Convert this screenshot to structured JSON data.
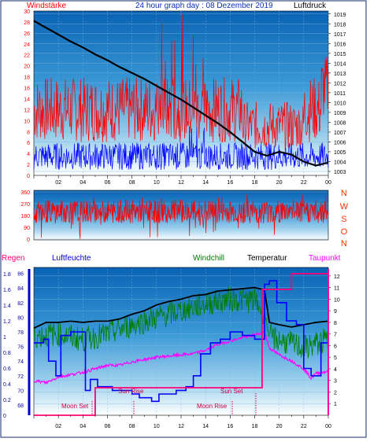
{
  "header": {
    "left_label": "Windstärke",
    "title": "24 hour graph day : 08 Dezember 2019",
    "right_label": "Luftdruck"
  },
  "chart_data": [
    {
      "type": "line",
      "panel": "wind-pressure",
      "x_label_hours": [
        "02",
        "04",
        "06",
        "08",
        "10",
        "12",
        "14",
        "16",
        "18",
        "20",
        "22",
        "00"
      ],
      "left_axis": {
        "label": "Windstärke",
        "ticks": [
          0,
          2,
          4,
          6,
          8,
          10,
          12,
          14,
          16,
          18,
          20,
          22,
          24,
          26,
          28,
          30
        ],
        "top_label": "30"
      },
      "right_axis": {
        "label": "Luftdruck",
        "ticks": [
          1003,
          1004,
          1005,
          1006,
          1007,
          1008,
          1009,
          1010,
          1011,
          1012,
          1013,
          1014,
          1015,
          1016,
          1017,
          1018,
          1019
        ]
      },
      "series": [
        {
          "name": "Luftdruck",
          "axis": "right",
          "color": "#000000",
          "x": [
            0,
            1,
            2,
            3,
            4,
            5,
            6,
            7,
            8,
            9,
            10,
            11,
            12,
            13,
            14,
            15,
            16,
            17,
            18,
            19,
            20,
            21,
            22,
            23,
            24
          ],
          "values": [
            1018.3,
            1017.6,
            1016.9,
            1016.2,
            1015.6,
            1014.9,
            1014.3,
            1013.6,
            1013.0,
            1012.4,
            1011.7,
            1011.0,
            1010.3,
            1009.5,
            1008.7,
            1007.9,
            1007.0,
            1006.0,
            1005.0,
            1004.6,
            1005.0,
            1004.7,
            1004.0,
            1003.6,
            1003.9
          ]
        },
        {
          "name": "Böen",
          "axis": "left",
          "color": "#ff0000",
          "typical_range": [
            6,
            18
          ]
        },
        {
          "name": "Wind",
          "axis": "left",
          "color": "#0000ff",
          "typical_range": [
            1,
            6
          ]
        }
      ]
    },
    {
      "type": "line",
      "panel": "wind-direction",
      "left_axis": {
        "ticks": [
          0,
          90,
          180,
          270,
          360
        ]
      },
      "right_labels": [
        "N",
        "W",
        "S",
        "O",
        "N"
      ],
      "series": [
        {
          "name": "Windrichtung",
          "color": "#ff0000",
          "typical_range": [
            120,
            300
          ]
        }
      ]
    },
    {
      "type": "line",
      "panel": "climate",
      "legend": [
        "Regen",
        "Luftfeuchte",
        "Windchill",
        "Temperatur",
        "Taupunkt"
      ],
      "regen_axis": {
        "ticks": [
          "0",
          "0.2",
          "0.4",
          "0.6",
          "0.8",
          "1",
          "1.2",
          "1.4",
          "1.6",
          "1.8"
        ]
      },
      "humidity_axis": {
        "ticks": [
          68,
          70,
          72,
          74,
          76,
          78,
          80,
          82,
          84,
          86
        ]
      },
      "temp_axis": {
        "ticks": [
          1,
          2,
          3,
          4,
          5,
          6,
          7,
          8,
          9,
          10,
          11,
          12
        ]
      },
      "x_label_hours": [
        "02",
        "04",
        "06",
        "08",
        "10",
        "12",
        "14",
        "16",
        "18",
        "20",
        "22",
        "00"
      ],
      "annotations": [
        "Moon Set",
        "Sun Rise",
        "Moon Rise",
        "Sun Set"
      ],
      "series": [
        {
          "name": "Temperatur",
          "axis": "temp",
          "color": "#000000",
          "x": [
            0,
            1,
            2,
            3,
            4,
            5,
            6,
            7,
            8,
            9,
            10,
            11,
            12,
            13,
            14,
            15,
            16,
            17,
            18,
            18.8,
            19.2,
            20,
            21,
            22,
            23,
            24
          ],
          "values": [
            7.5,
            8.0,
            8.0,
            8.1,
            8.0,
            8.1,
            8.1,
            8.3,
            8.7,
            9.0,
            9.5,
            9.8,
            10.0,
            10.3,
            10.4,
            10.7,
            10.8,
            10.9,
            11.0,
            10.8,
            8.0,
            7.8,
            7.6,
            7.8,
            8.0,
            8.1
          ]
        },
        {
          "name": "Windchill",
          "axis": "temp",
          "color": "#008000",
          "x": [
            0,
            2,
            4,
            6,
            8,
            10,
            12,
            14,
            16,
            18,
            18.8,
            19.2,
            20,
            22,
            24
          ],
          "values": [
            6.8,
            7.0,
            6.5,
            7.0,
            7.8,
            8.4,
            9.0,
            9.6,
            10.0,
            9.9,
            8.8,
            6.8,
            6.5,
            5.8,
            6.5
          ]
        },
        {
          "name": "Taupunkt",
          "axis": "temp",
          "color": "#ff00ff",
          "x": [
            0,
            1,
            2,
            3,
            4,
            5,
            6,
            7,
            8,
            9,
            10,
            11,
            12,
            13,
            14,
            15,
            16,
            17,
            18,
            18.8,
            19.2,
            20,
            21,
            22,
            22.6,
            23,
            24
          ],
          "values": [
            3.0,
            2.8,
            3.3,
            3.5,
            3.7,
            4.0,
            4.3,
            4.3,
            4.6,
            4.8,
            5.0,
            5.1,
            5.2,
            5.3,
            5.6,
            6.1,
            6.4,
            6.7,
            6.9,
            7.2,
            5.8,
            5.2,
            4.7,
            4.0,
            3.2,
            3.6,
            3.8
          ]
        },
        {
          "name": "Luftfeuchte",
          "axis": "humidity",
          "color": "#0000ff",
          "x": [
            0,
            0.8,
            1.2,
            1.8,
            2.2,
            3,
            4.2,
            4.6,
            5.2,
            6,
            6.4,
            8,
            8.6,
            9.6,
            10.2,
            11,
            11.6,
            12.4,
            13,
            13.6,
            14.4,
            15.2,
            16,
            17,
            18,
            18.8,
            19.2,
            19.8,
            20.6,
            21.4,
            22,
            22.6,
            23.4,
            24
          ],
          "values": [
            76.5,
            77,
            74,
            72,
            77.5,
            78,
            70,
            71.5,
            70.5,
            70.5,
            70,
            69.5,
            69,
            68.5,
            69.5,
            69.5,
            70,
            70.5,
            72,
            75,
            76.5,
            77,
            78,
            77.5,
            77,
            84.5,
            85,
            82,
            79.5,
            79,
            73,
            72,
            76.5,
            75
          ]
        },
        {
          "name": "Regen",
          "axis": "regen",
          "color": "#ff0077",
          "x": [
            0,
            5,
            5,
            18.6,
            18.6,
            21,
            21,
            24
          ],
          "values": [
            0,
            0,
            0.35,
            0.35,
            1.6,
            1.6,
            1.8,
            1.8
          ]
        }
      ]
    }
  ]
}
